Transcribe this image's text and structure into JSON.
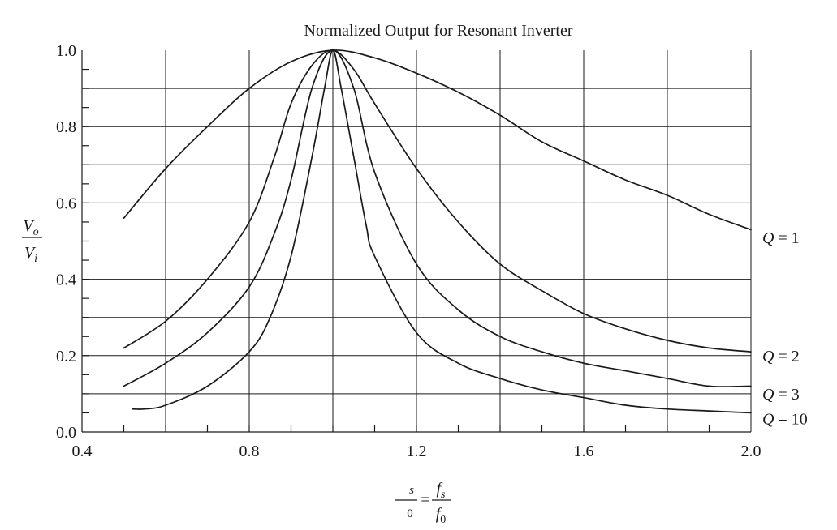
{
  "chart_data": {
    "type": "line",
    "title": "Normalized Output for Resonant Inverter",
    "xlim": [
      0.4,
      2.0
    ],
    "ylim": [
      0.0,
      1.0
    ],
    "x_ticks": [
      0.4,
      0.8,
      1.2,
      1.6,
      2.0
    ],
    "x_tick_labels": [
      "0.4",
      "0.8",
      "1.2",
      "1.6",
      "2.0"
    ],
    "y_ticks": [
      0.0,
      0.2,
      0.4,
      0.6,
      0.8,
      1.0
    ],
    "y_tick_labels": [
      "0.0",
      "0.2",
      "0.4",
      "0.6",
      "0.8",
      "1.0"
    ],
    "grid": true,
    "ylabel": {
      "num": "V",
      "num_sub": "o",
      "den": "V",
      "den_sub": "i"
    },
    "xlabel": {
      "left_num": "s",
      "left_den": "0",
      "eq": "=",
      "num": "f",
      "num_sub": "s",
      "den": "f",
      "den_sub": "0"
    },
    "series": [
      {
        "name": "Q = 1",
        "label_y": 0.51,
        "x": [
          0.5,
          0.6,
          0.7,
          0.8,
          0.9,
          1.0,
          1.1,
          1.2,
          1.3,
          1.4,
          1.5,
          1.6,
          1.7,
          1.8,
          1.9,
          2.0
        ],
        "y": [
          0.56,
          0.69,
          0.8,
          0.9,
          0.97,
          1.0,
          0.98,
          0.94,
          0.89,
          0.83,
          0.76,
          0.71,
          0.66,
          0.62,
          0.57,
          0.53
        ]
      },
      {
        "name": "Q = 2",
        "label_y": 0.2,
        "x": [
          0.5,
          0.6,
          0.7,
          0.8,
          0.86,
          0.9,
          0.95,
          1.0,
          1.05,
          1.1,
          1.2,
          1.3,
          1.4,
          1.5,
          1.6,
          1.7,
          1.8,
          1.9,
          2.0
        ],
        "y": [
          0.22,
          0.29,
          0.4,
          0.55,
          0.72,
          0.86,
          0.96,
          1.0,
          0.95,
          0.86,
          0.69,
          0.55,
          0.44,
          0.37,
          0.31,
          0.27,
          0.24,
          0.22,
          0.21
        ]
      },
      {
        "name": "Q = 3",
        "label_y": 0.1,
        "x": [
          0.5,
          0.6,
          0.7,
          0.8,
          0.86,
          0.9,
          0.95,
          1.0,
          1.05,
          1.1,
          1.2,
          1.3,
          1.4,
          1.5,
          1.6,
          1.7,
          1.8,
          1.9,
          2.0
        ],
        "y": [
          0.12,
          0.18,
          0.26,
          0.38,
          0.52,
          0.66,
          0.9,
          1.0,
          0.9,
          0.68,
          0.44,
          0.32,
          0.25,
          0.21,
          0.18,
          0.16,
          0.14,
          0.12,
          0.12
        ]
      },
      {
        "name": "Q = 10",
        "label_y": 0.035,
        "x": [
          0.52,
          0.55,
          0.6,
          0.7,
          0.8,
          0.85,
          0.9,
          0.95,
          0.98,
          1.0,
          1.02,
          1.05,
          1.08,
          1.1,
          1.2,
          1.3,
          1.4,
          1.5,
          1.6,
          1.7,
          1.8,
          1.9,
          2.0
        ],
        "y": [
          0.06,
          0.06,
          0.07,
          0.12,
          0.21,
          0.3,
          0.46,
          0.72,
          0.9,
          1.0,
          0.9,
          0.72,
          0.54,
          0.46,
          0.26,
          0.18,
          0.14,
          0.11,
          0.09,
          0.07,
          0.06,
          0.055,
          0.05
        ]
      }
    ]
  }
}
